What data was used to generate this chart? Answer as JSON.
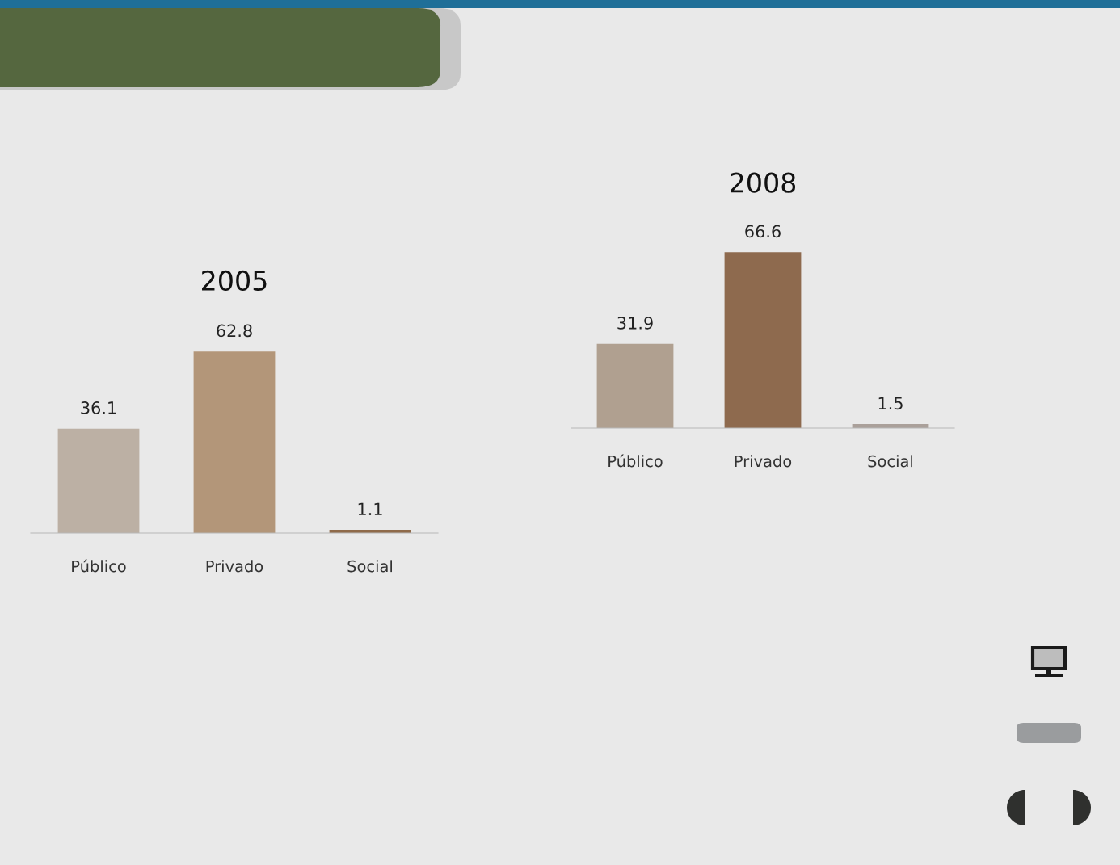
{
  "chart_data": [
    {
      "type": "bar",
      "title": "2005",
      "categories": [
        "Público",
        "Privado",
        "Social"
      ],
      "values": [
        36.1,
        62.8,
        1.1
      ],
      "colors": [
        "#bcb0a4",
        "#b39679",
        "#8f6a4a"
      ],
      "data_labels": true
    },
    {
      "type": "bar",
      "title": "2008",
      "categories": [
        "Público",
        "Privado",
        "Social"
      ],
      "values": [
        31.9,
        66.6,
        1.5
      ],
      "colors": [
        "#b0a090",
        "#8e6a4e",
        "#aaa09a"
      ],
      "data_labels": true
    }
  ]
}
